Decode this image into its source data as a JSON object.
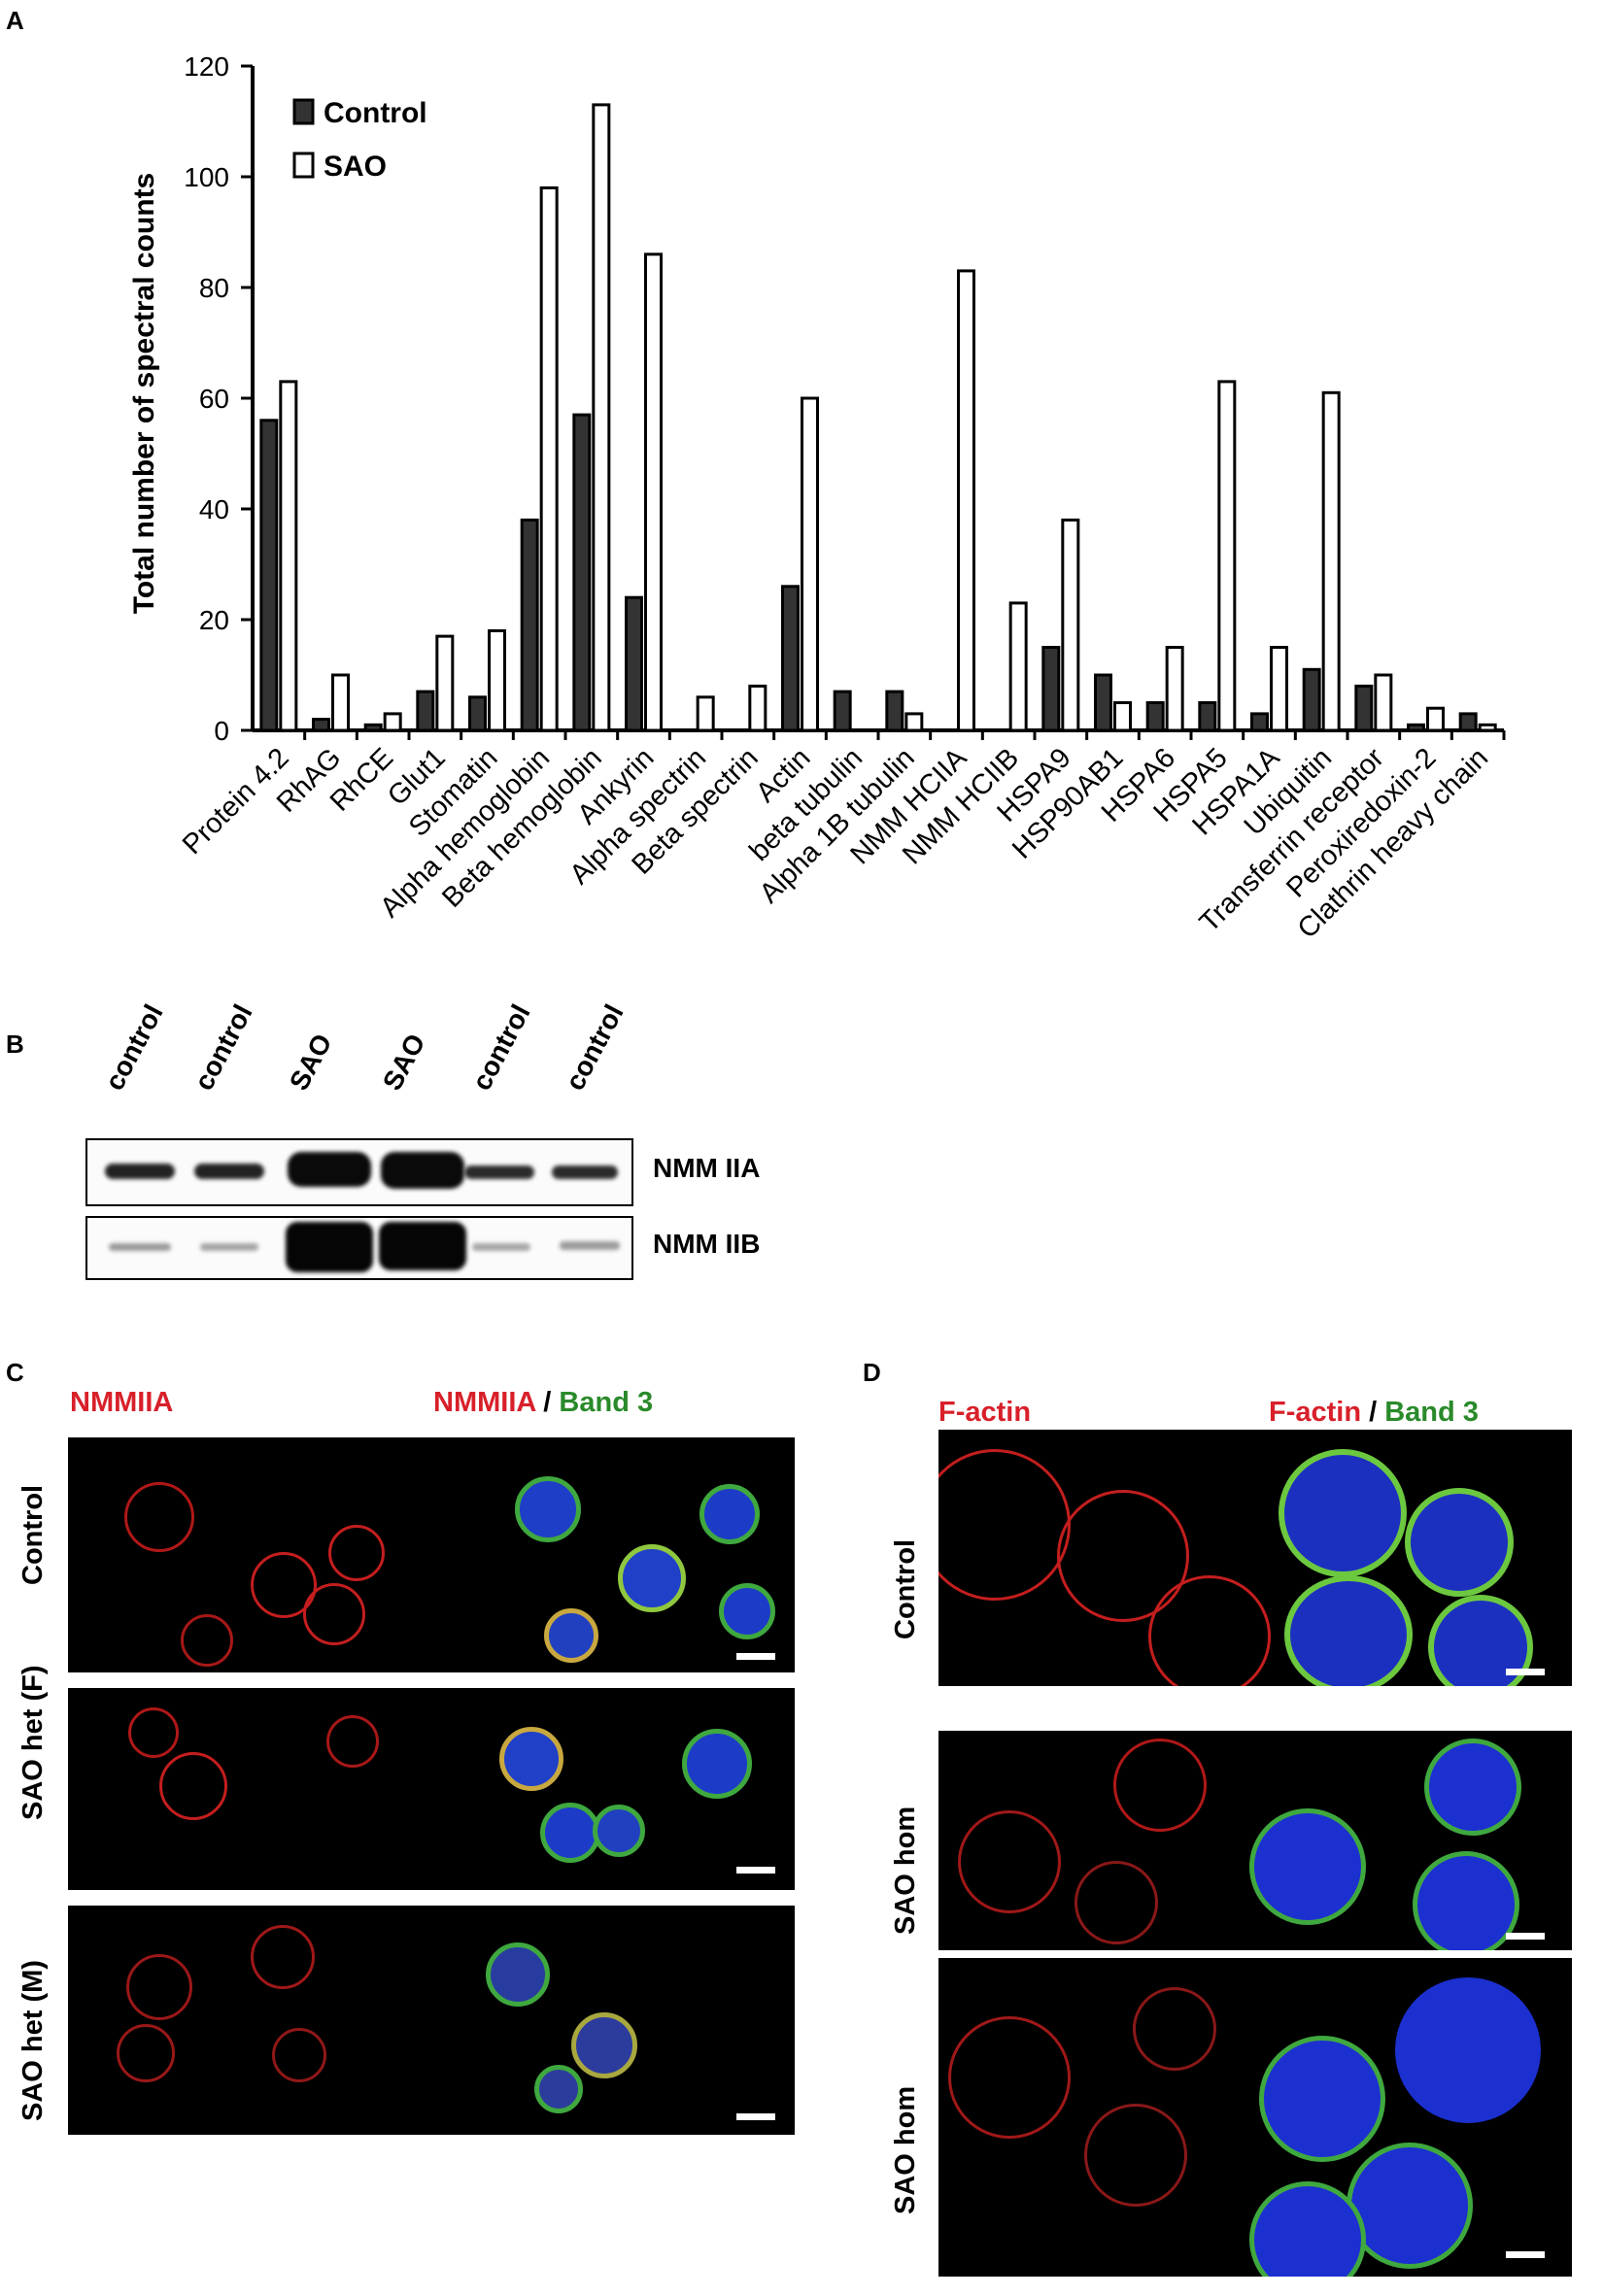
{
  "panels": {
    "a": "A",
    "b": "B",
    "c": "C",
    "d": "D"
  },
  "chart_data": {
    "type": "bar",
    "ylabel": "Total number of spectral counts",
    "xlabel": "",
    "ylim": [
      0,
      120
    ],
    "yticks": [
      0,
      20,
      40,
      60,
      80,
      100,
      120
    ],
    "legend_position": "top-left",
    "categories": [
      "Protein 4.2",
      "RhAG",
      "RhCE",
      "Glut1",
      "Stomatin",
      "Alpha hemoglobin",
      "Beta hemoglobin",
      "Ankyrin",
      "Alpha spectrin",
      "Beta spectrin",
      "Actin",
      "beta tubulin",
      "Alpha 1B tubulin",
      "NMM HCIIA",
      "NMM HCIIB",
      "HSPA9",
      "HSP90AB1",
      "HSPA6",
      "HSPA5",
      "HSPA1A",
      "Ubiquitin",
      "Transferrin receptor",
      "Peroxiredoxin-2",
      "Clathrin heavy chain"
    ],
    "series": [
      {
        "name": "Control",
        "color": "#333333",
        "values": [
          56,
          2,
          1,
          7,
          6,
          38,
          57,
          24,
          0,
          0,
          26,
          7,
          7,
          0,
          0,
          15,
          10,
          5,
          5,
          3,
          11,
          8,
          1,
          3
        ]
      },
      {
        "name": "SAO",
        "color": "#ffffff",
        "values": [
          63,
          10,
          3,
          17,
          18,
          98,
          113,
          86,
          6,
          8,
          60,
          0,
          3,
          83,
          23,
          38,
          5,
          15,
          63,
          15,
          61,
          10,
          4,
          1
        ]
      }
    ]
  },
  "blot": {
    "lanes": [
      "control",
      "control",
      "SAO",
      "SAO",
      "control",
      "control"
    ],
    "rows": [
      "NMM IIA",
      "NMM IIB"
    ]
  },
  "panel_c": {
    "header_single": "NMMIIA",
    "header_merge_red": "NMMIIA",
    "header_sep": " / ",
    "header_merge_green": "Band 3",
    "rows": [
      "Control",
      "SAO het (F)",
      "SAO het (M)"
    ]
  },
  "panel_d": {
    "header_single": "F-actin",
    "header_merge_red": "F-actin",
    "header_sep": " / ",
    "header_merge_green": "Band 3",
    "rows": [
      "Control",
      "SAO hom",
      "SAO hom"
    ]
  }
}
